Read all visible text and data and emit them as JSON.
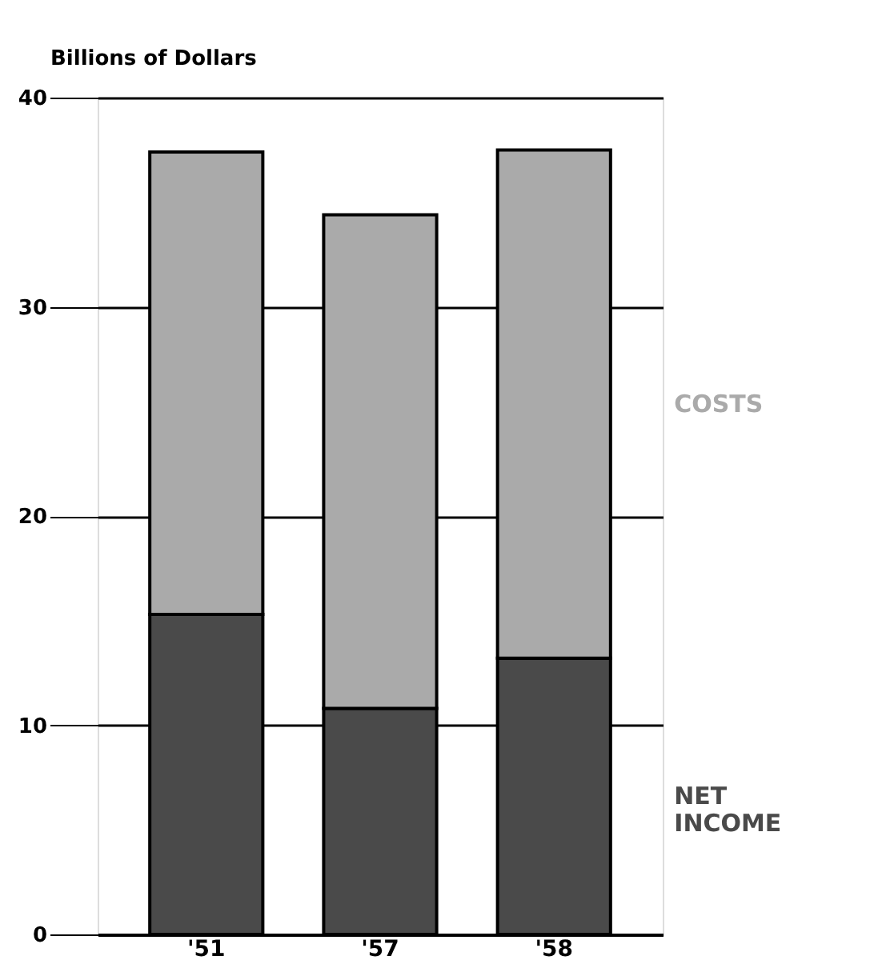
{
  "chart_data": {
    "type": "bar",
    "ylabel": "Billions of Dollars",
    "categories": [
      "'51",
      "'57",
      "'58"
    ],
    "stacked": true,
    "series": [
      {
        "name": "NET INCOME",
        "color": "#4a4a4a",
        "values": [
          15.3,
          10.8,
          13.2
        ]
      },
      {
        "name": "COSTS",
        "color": "#aaaaaa",
        "values": [
          22.1,
          23.6,
          24.3
        ]
      }
    ],
    "ylim": [
      0,
      40
    ],
    "yticks": [
      0,
      10,
      20,
      30,
      40
    ],
    "grid": "y",
    "legend": "right"
  }
}
